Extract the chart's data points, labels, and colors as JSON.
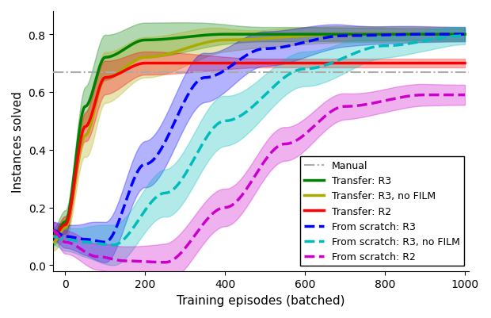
{
  "title": "",
  "xlabel": "Training episodes (batched)",
  "ylabel": "Instances solved",
  "xlim": [
    -30,
    1010
  ],
  "ylim": [
    -0.02,
    0.88
  ],
  "manual_value": 0.668,
  "colors": {
    "manual": "#aaaaaa",
    "transfer_r3": "#008000",
    "transfer_r3_nofilm": "#aaaa00",
    "transfer_r2": "#ff0000",
    "scratch_r3": "#0000ff",
    "scratch_r3_nofilm": "#00bbbb",
    "scratch_r2": "#cc00cc"
  },
  "legend_labels": [
    "Manual",
    "Transfer: R3",
    "Transfer: R3, no FILM",
    "Transfer: R2",
    "From scratch: R3",
    "From scratch: R3, no FILM",
    "From scratch: R2"
  ]
}
